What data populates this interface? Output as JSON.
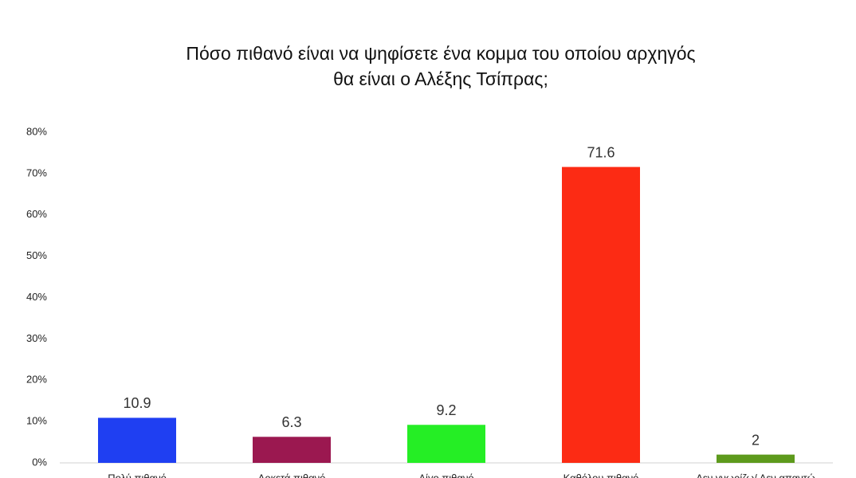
{
  "chart_data": {
    "type": "bar",
    "title": [
      "Πόσο πιθανό είναι να ψηφίσετε ένα κομμα του οποίου αρχηγός",
      "θα είναι ο Αλέξης Τσίπρας;"
    ],
    "categories": [
      "Πολύ πιθανό",
      "Αρκετά πιθανό",
      "Λίγο πιθανό",
      "Καθόλου πιθανό",
      "Δεν γνωρίζω/ Δεν απαντώ"
    ],
    "values": [
      10.9,
      6.3,
      9.2,
      71.6,
      2
    ],
    "colors": [
      "#1f3ff2",
      "#9b1850",
      "#25ee25",
      "#fc2b14",
      "#5d9a1c"
    ],
    "ylim": [
      0,
      80
    ],
    "yticks": [
      {
        "value": 0,
        "label": "0%"
      },
      {
        "value": 10,
        "label": "10%"
      },
      {
        "value": 20,
        "label": "20%"
      },
      {
        "value": 30,
        "label": "30%"
      },
      {
        "value": 40,
        "label": "40%"
      },
      {
        "value": 50,
        "label": "50%"
      },
      {
        "value": 60,
        "label": "60%"
      },
      {
        "value": 70,
        "label": "70%"
      },
      {
        "value": 80,
        "label": "80%"
      }
    ],
    "grid": false
  }
}
